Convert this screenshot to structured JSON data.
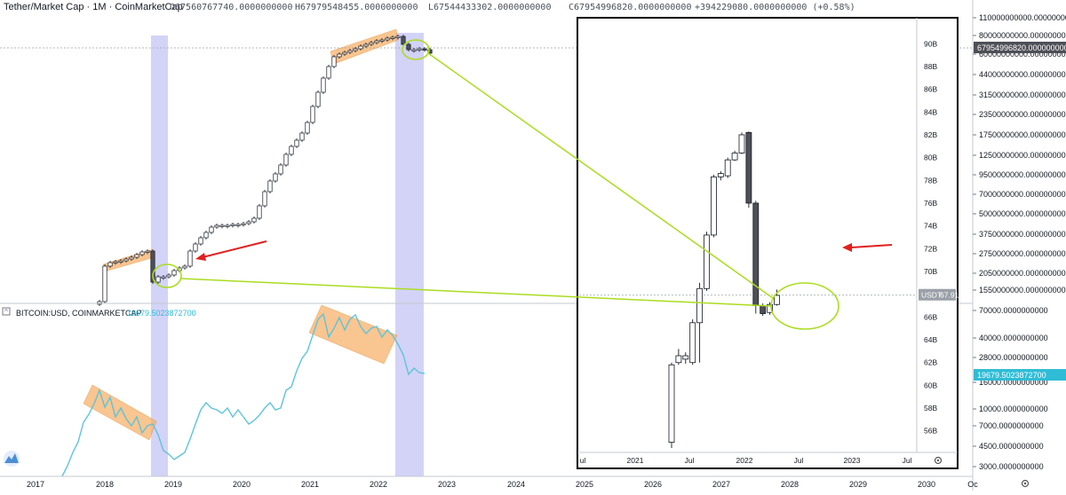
{
  "header": {
    "title": "Tether/Market Cap · 1M · CoinMarketCap",
    "open": "O67560767740.0000000000",
    "high": "H67979548455.0000000000",
    "low": "L67544433302.0000000000",
    "close": "C67954996820.0000000000",
    "change": "+394229080.0000000000 (+0.58%)"
  },
  "btc_legend": {
    "symbol": "BITCOIN:USD, COINMARKETCAP",
    "value": "19679.5023872700"
  },
  "colors": {
    "btc_line": "#5ec4da",
    "highlight_band": "#c8c8f5",
    "orange_box": "#f7b26b",
    "green_arrow": "#aadc1f",
    "red_arrow": "#e0201e",
    "price_tag": "#4e5057",
    "btc_tag": "#30bcd6"
  },
  "icons": [
    "tradingview-logo-icon",
    "settings-gear-icon"
  ],
  "chart_data": [
    {
      "type": "candlestick",
      "name": "Tether/Market Cap monthly (main pane)",
      "x_labels": [
        "2017",
        "2018",
        "2019",
        "2020",
        "2021",
        "2022",
        "2023",
        "2024",
        "2025",
        "2026",
        "2027",
        "2028",
        "2029",
        "2030",
        "Oc"
      ],
      "y_ticks": [
        "110000000000.0000000000",
        "80000000000.0000000000",
        "60000000000.0000000000",
        "44000000000.0000000000",
        "31500000000.0000000000",
        "23500000000.0000000000",
        "17500000000.0000000000",
        "12500000000.0000000000",
        "9500000000.0000000000",
        "7000000000.0000000000",
        "5000000000.0000000000",
        "3750000000.0000000000",
        "2750000000.0000000000",
        "2050000000.0000000000",
        "1550000000.0000000000"
      ],
      "last_price_label": "67954996820.0000000000",
      "scale": "log",
      "grid": false
    },
    {
      "type": "line",
      "name": "BITCOIN:USD monthly (lower pane)",
      "y_ticks": [
        "70000.0000000000",
        "40000.0000000000",
        "28000.0000000000",
        "16000.0000000000",
        "10000.0000000000",
        "7000.0000000000",
        "4500.0000000000",
        "3000.0000000000"
      ],
      "last_value_label": "19679.5023872700",
      "scale": "log"
    },
    {
      "type": "candlestick",
      "name": "Zoomed inset (USDT market cap, billions)",
      "x_labels": [
        "ul",
        "2021",
        "Jul",
        "2022",
        "Jul",
        "2023",
        "Jul"
      ],
      "y_ticks": [
        "90B",
        "88B",
        "86B",
        "84B",
        "82B",
        "80B",
        "78B",
        "76B",
        "74B",
        "72B",
        "70B",
        "68B",
        "66B",
        "64B",
        "62B",
        "60B",
        "58B",
        "56B"
      ],
      "y_range": [
        54.5,
        91.5
      ],
      "price_tag": {
        "symbol": "USDT",
        "value": "67.919B"
      },
      "candles": [
        {
          "o": 55.0,
          "h": 62.0,
          "l": 54.5,
          "c": 61.8
        },
        {
          "o": 62.0,
          "h": 63.2,
          "l": 61.8,
          "c": 62.6
        },
        {
          "o": 62.3,
          "h": 62.9,
          "l": 61.9,
          "c": 62.6
        },
        {
          "o": 62.0,
          "h": 65.8,
          "l": 61.8,
          "c": 65.5
        },
        {
          "o": 65.5,
          "h": 69.0,
          "l": 62.0,
          "c": 68.5
        },
        {
          "o": 68.5,
          "h": 73.5,
          "l": 68.3,
          "c": 73.2
        },
        {
          "o": 73.2,
          "h": 78.5,
          "l": 73.0,
          "c": 78.3
        },
        {
          "o": 78.3,
          "h": 78.8,
          "l": 78.0,
          "c": 78.6
        },
        {
          "o": 78.4,
          "h": 80.0,
          "l": 78.2,
          "c": 79.8
        },
        {
          "o": 79.8,
          "h": 80.6,
          "l": 79.7,
          "c": 80.4
        },
        {
          "o": 80.4,
          "h": 82.2,
          "l": 80.3,
          "c": 82.0
        },
        {
          "o": 82.2,
          "h": 82.3,
          "l": 75.6,
          "c": 76.0
        },
        {
          "o": 76.0,
          "h": 76.2,
          "l": 66.3,
          "c": 67.0
        },
        {
          "o": 67.0,
          "h": 67.2,
          "l": 66.1,
          "c": 66.3
        },
        {
          "o": 66.4,
          "h": 67.3,
          "l": 66.2,
          "c": 67.1
        },
        {
          "o": 67.1,
          "h": 68.4,
          "l": 67.0,
          "c": 67.9
        }
      ]
    }
  ]
}
